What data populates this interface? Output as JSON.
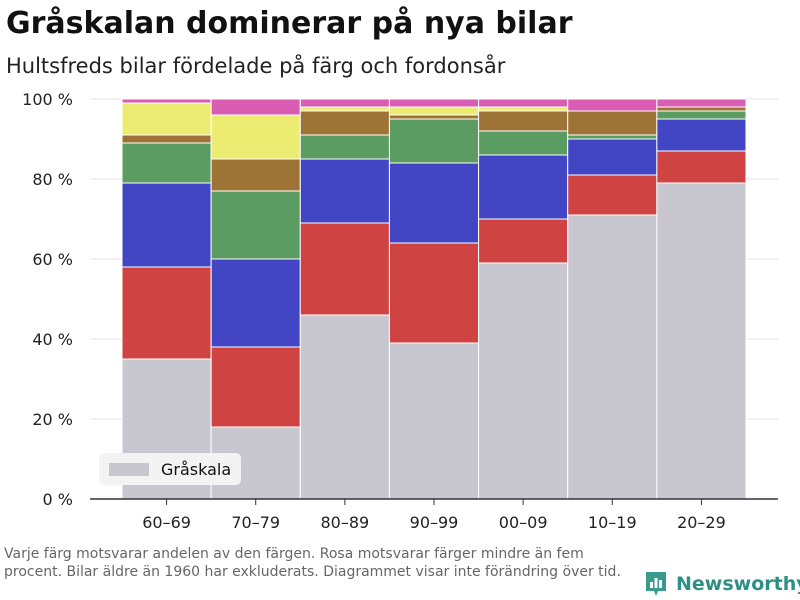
{
  "title": "Gråskalan dominerar på nya bilar",
  "subtitle": "Hultsfreds bilar fördelade på färg och fordonsår",
  "footnote": "Varje färg motsvarar andelen av den färgen. Rosa motsvarar färger mindre än fem procent. Bilar äldre än 1960 har exkluderats. Diagrammet visar inte förändring över tid.",
  "brand": "Newsworthy",
  "legend": {
    "label": "Gråskala",
    "color": "#c8c7cf"
  },
  "chart_data": {
    "type": "bar",
    "stacked": true,
    "categories": [
      "60–69",
      "70–79",
      "80–89",
      "90–99",
      "00–09",
      "10–19",
      "20–29"
    ],
    "series": [
      {
        "name": "Gråskala",
        "color": "#c8c7cf",
        "values": [
          35,
          18,
          46,
          39,
          59,
          71,
          79
        ]
      },
      {
        "color": "#cf4343",
        "values": [
          23,
          20,
          23,
          25,
          11,
          10,
          8
        ]
      },
      {
        "color": "#4346c4",
        "values": [
          21,
          22,
          16,
          20,
          16,
          9,
          8
        ]
      },
      {
        "color": "#5b9c62",
        "values": [
          10,
          17,
          6,
          11,
          6,
          1,
          2
        ]
      },
      {
        "color": "#9d7336",
        "values": [
          2,
          8,
          6,
          1,
          5,
          6,
          1
        ]
      },
      {
        "color": "#ecec72",
        "values": [
          8,
          11,
          1,
          2,
          1,
          0,
          0
        ]
      },
      {
        "color": "#d95eb3",
        "values": [
          1,
          4,
          2,
          2,
          2,
          3,
          2
        ]
      }
    ],
    "yticks": [
      "0 %",
      "20 %",
      "40 %",
      "60 %",
      "80 %",
      "100 %"
    ],
    "ylim": [
      0,
      100
    ],
    "grid": true,
    "legend_position": "bottom-left"
  }
}
